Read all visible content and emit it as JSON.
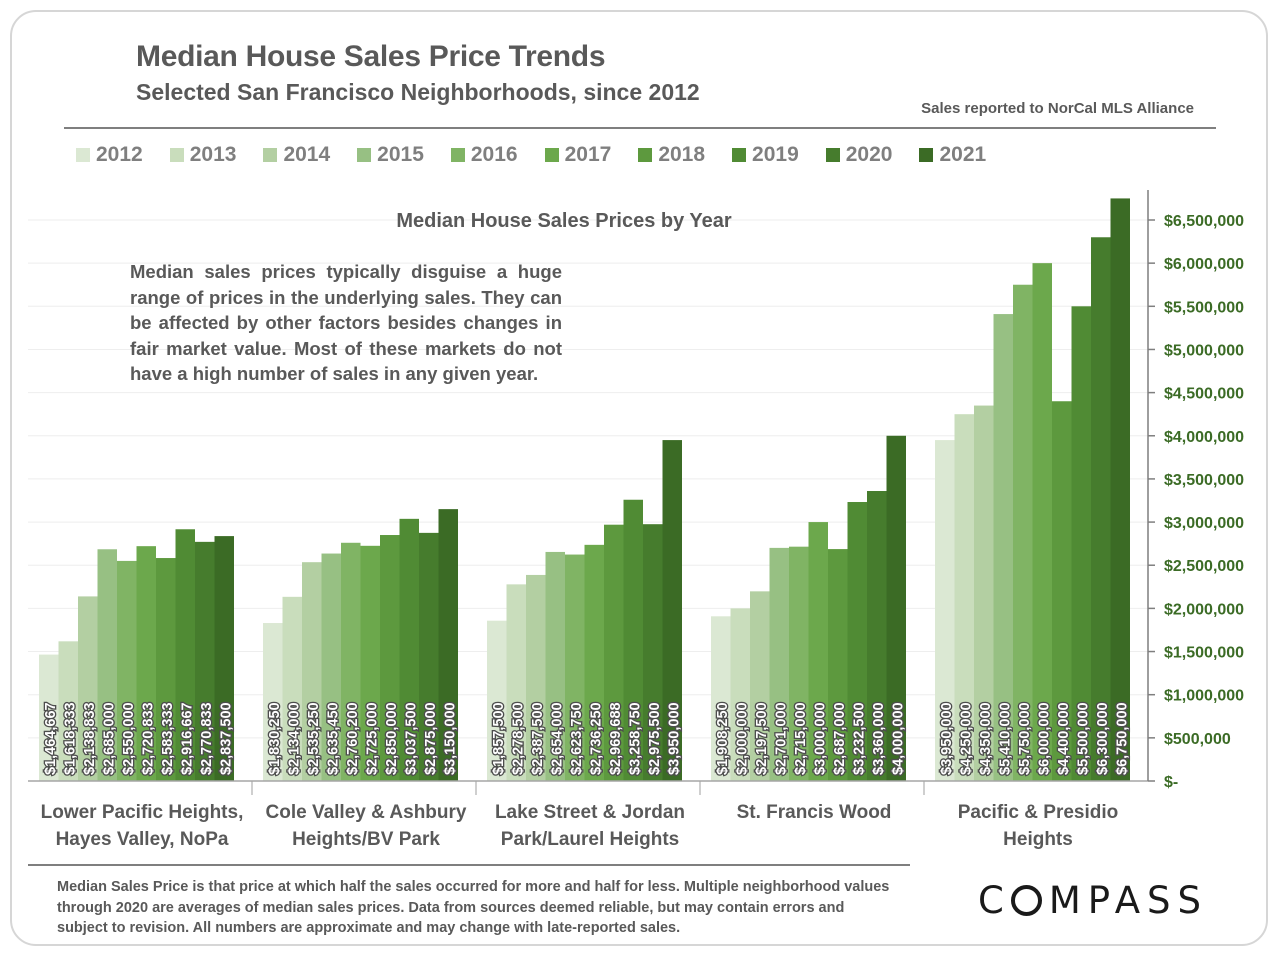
{
  "header": {
    "title": "Median House Sales Price Trends",
    "subtitle": "Selected San Francisco Neighborhoods, since 2012",
    "source": "Sales reported to NorCal MLS Alliance"
  },
  "note": "Median sales prices typically disguise a huge range of prices in the underlying sales. They can be affected by other factors besides changes in fair market value. Most of these markets do not have a high number of sales in any given year.",
  "footnote": "Median Sales Price is that price at which half the sales occurred for more and half for less. Multiple neighborhood values through 2020 are averages of median sales prices. Data from sources deemed reliable, but may contain errors and subject to revision.  All numbers are approximate and may change with late-reported sales.",
  "logo": {
    "text": "COMPASS"
  },
  "chart_data": {
    "type": "bar",
    "title": "Median House Sales Prices by Year",
    "categories": [
      [
        "Lower Pacific Heights,",
        "Hayes Valley, NoPa"
      ],
      [
        "Cole Valley & Ashbury",
        "Heights/BV Park"
      ],
      [
        "Lake Street & Jordan",
        "Park/Laurel Heights"
      ],
      [
        "St. Francis Wood"
      ],
      [
        "Pacific & Presidio",
        "Heights"
      ]
    ],
    "series_names": [
      "2012",
      "2013",
      "2014",
      "2015",
      "2016",
      "2017",
      "2018",
      "2019",
      "2020",
      "2021"
    ],
    "colors": [
      "#dbe8d3",
      "#c9ddbc",
      "#b3cfa2",
      "#97c083",
      "#80b464",
      "#6ca84c",
      "#5d993e",
      "#508b34",
      "#467c2d",
      "#3b6b25"
    ],
    "values": [
      [
        1464667,
        1618333,
        2138833,
        2685000,
        2550000,
        2720833,
        2583333,
        2916667,
        2770833,
        2837500
      ],
      [
        1830250,
        2134000,
        2535250,
        2635450,
        2760200,
        2725000,
        2850000,
        3037500,
        2875000,
        3150000
      ],
      [
        1857500,
        2278500,
        2387500,
        2654000,
        2623750,
        2736250,
        2969688,
        3258750,
        2975500,
        3950000
      ],
      [
        1908250,
        2000000,
        2197500,
        2701000,
        2715000,
        3000000,
        2687000,
        3232500,
        3360000,
        4000000
      ],
      [
        3950000,
        4250000,
        4350000,
        5410000,
        5750000,
        6000000,
        4400000,
        5500000,
        6300000,
        6750000
      ]
    ],
    "data_labels": [
      [
        "$1,464,667",
        "$1,618,333",
        "$2,138,833",
        "$2,685,000",
        "$2,550,000",
        "$2,720,833",
        "$2,583,333",
        "$2,916,667",
        "$2,770,833",
        "$2,837,500"
      ],
      [
        "$1,830,250",
        "$2,134,000",
        "$2,535,250",
        "$2,635,450",
        "$2,760,200",
        "$2,725,000",
        "$2,850,000",
        "$3,037,500",
        "$2,875,000",
        "$3,150,000"
      ],
      [
        "$1,857,500",
        "$2,278,500",
        "$2,387,500",
        "$2,654,000",
        "$2,623,750",
        "$2,736,250",
        "$2,969,688",
        "$3,258,750",
        "$2,975,500",
        "$3,950,000"
      ],
      [
        "$1,908,250",
        "$2,000,000",
        "$2,197,500",
        "$2,701,000",
        "$2,715,000",
        "$3,000,000",
        "$2,687,000",
        "$3,232,500",
        "$3,360,000",
        "$4,000,000"
      ],
      [
        "$3,950,000",
        "$4,250,000",
        "$4,350,000",
        "$5,410,000",
        "$5,750,000",
        "$6,000,000",
        "$4,400,000",
        "$5,500,000",
        "$6,300,000",
        "$6,750,000"
      ]
    ],
    "y_ticks": [
      0,
      500000,
      1000000,
      1500000,
      2000000,
      2500000,
      3000000,
      3500000,
      4000000,
      4500000,
      5000000,
      5500000,
      6000000,
      6500000
    ],
    "y_tick_labels": [
      "$-",
      "$500,000",
      "$1,000,000",
      "$1,500,000",
      "$2,000,000",
      "$2,500,000",
      "$3,000,000",
      "$3,500,000",
      "$4,000,000",
      "$4,500,000",
      "$5,000,000",
      "$5,500,000",
      "$6,000,000",
      "$6,500,000"
    ],
    "ylim": [
      0,
      6750000
    ],
    "y_axis_side": "right",
    "grid": true,
    "legend_position": "top",
    "tick_label_color": "#3b6b25"
  }
}
